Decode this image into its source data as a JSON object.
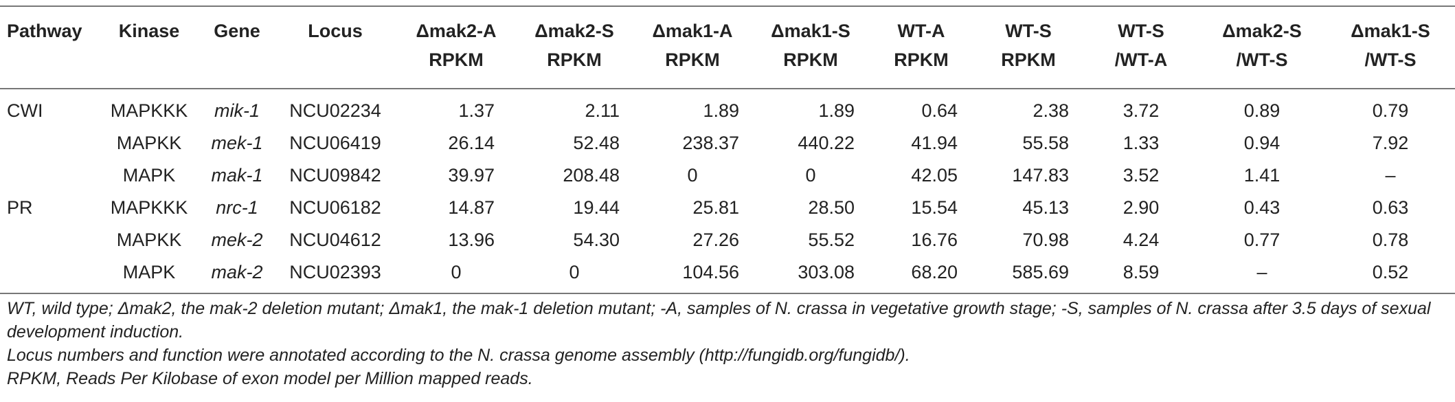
{
  "table": {
    "headers": [
      [
        "Pathway"
      ],
      [
        "Kinase"
      ],
      [
        "Gene"
      ],
      [
        "Locus"
      ],
      [
        "Δmak2-A",
        "RPKM"
      ],
      [
        "Δmak2-S",
        "RPKM"
      ],
      [
        "Δmak1-A",
        "RPKM"
      ],
      [
        "Δmak1-S",
        "RPKM"
      ],
      [
        "WT-A",
        "RPKM"
      ],
      [
        "WT-S",
        "RPKM"
      ],
      [
        "WT-S",
        "/WT-A"
      ],
      [
        "Δmak2-S",
        "/WT-S"
      ],
      [
        "Δmak1-S",
        "/WT-S"
      ]
    ],
    "rows": [
      [
        "CWI",
        "MAPKKK",
        "mik-1",
        "NCU02234",
        "1.37",
        "2.11",
        "1.89",
        "1.89",
        "0.64",
        "2.38",
        "3.72",
        "0.89",
        "0.79"
      ],
      [
        "",
        "MAPKK",
        "mek-1",
        "NCU06419",
        "26.14",
        "52.48",
        "238.37",
        "440.22",
        "41.94",
        "55.58",
        "1.33",
        "0.94",
        "7.92"
      ],
      [
        "",
        "MAPK",
        "mak-1",
        "NCU09842",
        "39.97",
        "208.48",
        "0",
        "0",
        "42.05",
        "147.83",
        "3.52",
        "1.41",
        "–"
      ],
      [
        "PR",
        "MAPKKK",
        "nrc-1",
        "NCU06182",
        "14.87",
        "19.44",
        "25.81",
        "28.50",
        "15.54",
        "45.13",
        "2.90",
        "0.43",
        "0.63"
      ],
      [
        "",
        "MAPKK",
        "mek-2",
        "NCU04612",
        "13.96",
        "54.30",
        "27.26",
        "55.52",
        "16.76",
        "70.98",
        "4.24",
        "0.77",
        "0.78"
      ],
      [
        "",
        "MAPK",
        "mak-2",
        "NCU02393",
        "0",
        "0",
        "104.56",
        "303.08",
        "68.20",
        "585.69",
        "8.59",
        "–",
        "0.52"
      ]
    ]
  },
  "footnotes": [
    "WT, wild type; Δmak2, the mak-2 deletion mutant; Δmak1, the mak-1 deletion mutant; -A, samples of N. crassa in vegetative growth stage; -S, samples of N. crassa after 3.5 days of sexual development induction.",
    "Locus numbers and function were annotated according to the N. crassa genome assembly (http://fungidb.org/fungidb/).",
    "RPKM, Reads Per Kilobase of exon model per Million mapped reads."
  ]
}
